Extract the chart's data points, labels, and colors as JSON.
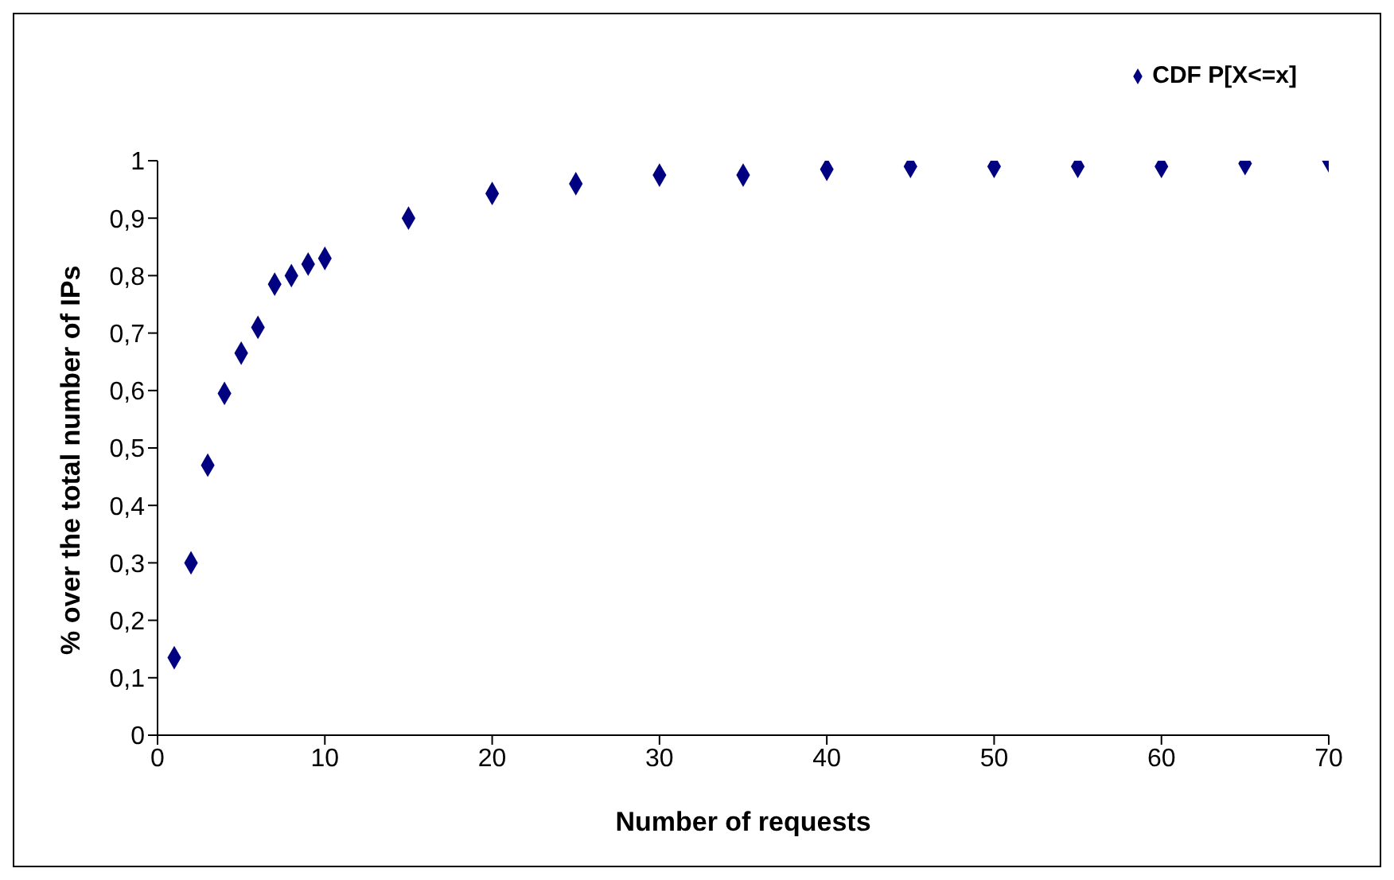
{
  "chart_data": {
    "type": "scatter",
    "xlabel": "Number of requests",
    "ylabel": "% over the total number of IPs",
    "legend": "top right",
    "marker": "diamond",
    "grid": false,
    "xlim": [
      0,
      70
    ],
    "xticks": [
      0,
      10,
      20,
      30,
      40,
      50,
      60,
      70
    ],
    "ylim": [
      0,
      1
    ],
    "yticks": [
      0,
      {
        "value": 0.1,
        "label": "0,1"
      },
      {
        "value": 0.2,
        "label": "0,2"
      },
      {
        "value": 0.3,
        "label": "0,3"
      },
      {
        "value": 0.4,
        "label": "0,4"
      },
      {
        "value": 0.5,
        "label": "0,5"
      },
      {
        "value": 0.6,
        "label": "0,6"
      },
      {
        "value": 0.7,
        "label": "0,7"
      },
      {
        "value": 0.8,
        "label": "0,8"
      },
      {
        "value": 0.9,
        "label": "0,9"
      },
      1
    ],
    "series": [
      {
        "name": "CDF P[X<=x]",
        "color": "#000080",
        "x": [
          1,
          2,
          3,
          4,
          5,
          6,
          7,
          8,
          9,
          10,
          15,
          20,
          25,
          30,
          35,
          40,
          45,
          50,
          55,
          60,
          65,
          70
        ],
        "values": [
          0.135,
          0.3,
          0.47,
          0.595,
          0.665,
          0.71,
          0.785,
          0.8,
          0.82,
          0.83,
          0.9,
          0.943,
          0.96,
          0.975,
          0.975,
          0.985,
          0.99,
          0.99,
          0.99,
          0.99,
          0.995,
          1.0
        ]
      }
    ]
  }
}
